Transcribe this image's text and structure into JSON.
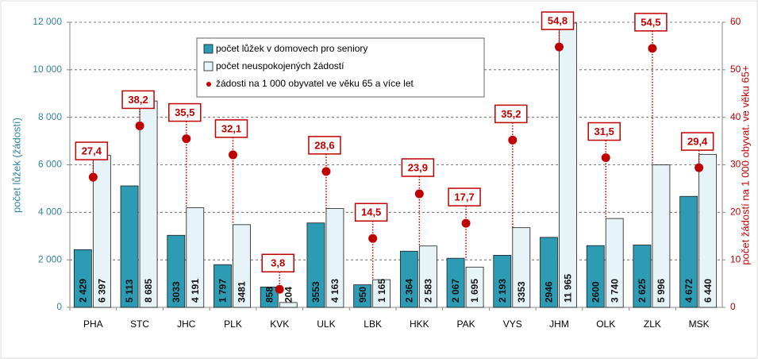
{
  "chart_data": {
    "type": "bar",
    "categories": [
      "PHA",
      "STC",
      "JHC",
      "PLK",
      "KVK",
      "ULK",
      "LBK",
      "HKK",
      "PAK",
      "VYS",
      "JHM",
      "OLK",
      "ZLK",
      "MSK"
    ],
    "y_label": "počet lůžek (žádostí)",
    "y2_label": "počet žádostí na 1 000 obyvat. ve věku 65+",
    "series": [
      {
        "name": "počet lůžek v domovech pro seniory",
        "color": "#2e9bb5",
        "values": [
          2429,
          5113,
          3033,
          1797,
          858,
          3553,
          950,
          2364,
          2067,
          2193,
          2946,
          2600,
          2625,
          4672
        ],
        "value_labels": [
          "2 429",
          "5 113",
          "3033",
          "1 797",
          "858",
          "3553",
          "950",
          "2 364",
          "2 067",
          "2 193",
          "2946",
          "2600",
          "2 625",
          "4 672"
        ]
      },
      {
        "name": "počet neuspokojených žádostí",
        "color": "#e6f4f8",
        "values": [
          6397,
          8685,
          4191,
          3481,
          204,
          4163,
          1165,
          2583,
          1695,
          3353,
          11965,
          3740,
          5996,
          6440
        ],
        "value_labels": [
          "6 397",
          "8 685",
          "4 191",
          "3481",
          "204",
          "4 163",
          "1 165",
          "2 583",
          "1 695",
          "3353",
          "11 965",
          "3 740",
          "5 996",
          "6 440"
        ]
      },
      {
        "name": "žádosti na 1 000 obyvatel ve věku 65 a více let",
        "color": "#c00000",
        "axis": "y2",
        "type": "dot",
        "values": [
          27.4,
          38.2,
          35.5,
          32.1,
          3.8,
          28.6,
          14.5,
          23.9,
          17.7,
          35.2,
          54.8,
          31.5,
          54.5,
          29.4
        ],
        "value_labels": [
          "27,4",
          "38,2",
          "35,5",
          "32,1",
          "3,8",
          "28,6",
          "14,5",
          "23,9",
          "17,7",
          "35,2",
          "54,8",
          "31,5",
          "54,5",
          "29,4"
        ]
      }
    ],
    "ylim": [
      0,
      12000
    ],
    "yticks": [
      0,
      {
        "value": 2000,
        "label": "2 000"
      },
      {
        "value": 4000,
        "label": "4 000"
      },
      {
        "value": 6000,
        "label": "6 000"
      },
      {
        "value": 8000,
        "label": "8 000"
      },
      {
        "value": 10000,
        "label": "10 000"
      },
      {
        "value": 12000,
        "label": "12 000"
      }
    ],
    "y2lim": [
      0,
      60
    ],
    "y2ticks": [
      0,
      10,
      20,
      30,
      40,
      50,
      60
    ],
    "grid": true
  }
}
